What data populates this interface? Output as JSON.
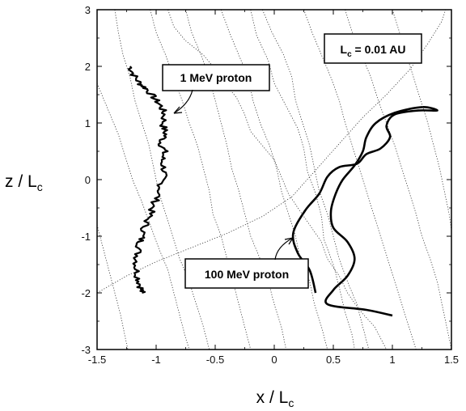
{
  "chart_data": {
    "type": "line",
    "title": "",
    "xlabel": "x / L",
    "xlabel_sub": "c",
    "ylabel": "z / L",
    "ylabel_sub": "c",
    "xlim": [
      -1.5,
      1.5
    ],
    "ylim": [
      -3,
      3
    ],
    "x_ticks": [
      -1.5,
      -1,
      -0.5,
      0,
      0.5,
      1,
      1.5
    ],
    "y_ticks": [
      -3,
      -2,
      -1,
      0,
      1,
      2,
      3
    ],
    "x_tick_labels": [
      "-1.5",
      "-1",
      "-0.5",
      "0",
      "0.5",
      "1",
      "1.5"
    ],
    "y_tick_labels": [
      "-3",
      "-2",
      "-1",
      "0",
      "1",
      "2",
      "3"
    ],
    "grid": false,
    "legend": "none",
    "annotations": {
      "lc_prefix": "L",
      "lc_sub": "c",
      "lc_suffix": " = 0.01 AU",
      "proton_1mev": "1 MeV proton",
      "proton_100mev": "100 MeV proton"
    },
    "series": [
      {
        "style": "thick-jagged",
        "points": [
          [
            -1.22,
            2.0
          ],
          [
            -1.19,
            1.85
          ],
          [
            -1.14,
            1.7
          ],
          [
            -1.08,
            1.6
          ],
          [
            -1.02,
            1.45
          ],
          [
            -0.96,
            1.3
          ],
          [
            -0.93,
            1.15
          ],
          [
            -0.94,
            0.95
          ],
          [
            -0.92,
            0.8
          ],
          [
            -0.96,
            0.65
          ],
          [
            -0.93,
            0.5
          ],
          [
            -0.95,
            0.35
          ],
          [
            -0.93,
            0.15
          ],
          [
            -0.95,
            0.0
          ],
          [
            -0.97,
            -0.2
          ],
          [
            -1.01,
            -0.4
          ],
          [
            -1.05,
            -0.6
          ],
          [
            -1.09,
            -0.8
          ],
          [
            -1.12,
            -1.0
          ],
          [
            -1.14,
            -1.15
          ],
          [
            -1.16,
            -1.35
          ],
          [
            -1.17,
            -1.55
          ],
          [
            -1.15,
            -1.75
          ],
          [
            -1.13,
            -1.9
          ],
          [
            -1.12,
            -2.0
          ]
        ]
      },
      {
        "style": "thick-smooth",
        "points": [
          [
            1.0,
            -2.4
          ],
          [
            0.78,
            -2.3
          ],
          [
            0.45,
            -2.2
          ],
          [
            0.5,
            -1.95
          ],
          [
            0.62,
            -1.7
          ],
          [
            0.68,
            -1.4
          ],
          [
            0.62,
            -1.1
          ],
          [
            0.5,
            -0.85
          ],
          [
            0.48,
            -0.55
          ],
          [
            0.52,
            -0.25
          ],
          [
            0.58,
            0.0
          ],
          [
            0.68,
            0.25
          ],
          [
            0.75,
            0.5
          ],
          [
            0.78,
            0.75
          ],
          [
            0.86,
            1.0
          ],
          [
            1.02,
            1.18
          ],
          [
            1.25,
            1.28
          ],
          [
            1.38,
            1.22
          ],
          [
            1.22,
            1.22
          ],
          [
            1.02,
            1.15
          ],
          [
            0.95,
            0.95
          ],
          [
            0.98,
            0.75
          ],
          [
            0.9,
            0.55
          ],
          [
            0.78,
            0.45
          ],
          [
            0.7,
            0.28
          ],
          [
            0.55,
            0.22
          ],
          [
            0.45,
            0.05
          ],
          [
            0.38,
            -0.25
          ],
          [
            0.26,
            -0.55
          ],
          [
            0.16,
            -0.95
          ],
          [
            0.2,
            -1.3
          ],
          [
            0.3,
            -1.6
          ],
          [
            0.35,
            -2.0
          ]
        ]
      },
      {
        "style": "dotted",
        "points": [
          [
            -0.1,
            3.0
          ],
          [
            -0.02,
            2.6
          ],
          [
            0.08,
            2.2
          ],
          [
            0.15,
            1.8
          ],
          [
            0.18,
            1.4
          ],
          [
            0.24,
            1.0
          ],
          [
            0.3,
            0.6
          ],
          [
            0.34,
            0.2
          ],
          [
            0.38,
            -0.2
          ],
          [
            0.45,
            -0.6
          ],
          [
            0.5,
            -1.0
          ],
          [
            0.55,
            -1.4
          ],
          [
            0.62,
            -1.8
          ],
          [
            0.7,
            -2.2
          ],
          [
            0.75,
            -2.6
          ],
          [
            0.8,
            -3.0
          ]
        ]
      },
      {
        "style": "dotted",
        "points": [
          [
            -0.45,
            3.0
          ],
          [
            -0.38,
            2.6
          ],
          [
            -0.3,
            2.2
          ],
          [
            -0.22,
            1.8
          ],
          [
            -0.18,
            1.4
          ],
          [
            -0.12,
            1.0
          ],
          [
            -0.04,
            0.6
          ],
          [
            0.02,
            0.2
          ],
          [
            0.06,
            -0.2
          ],
          [
            0.12,
            -0.6
          ],
          [
            0.18,
            -1.0
          ],
          [
            0.22,
            -1.4
          ],
          [
            0.3,
            -1.8
          ],
          [
            0.34,
            -2.2
          ],
          [
            0.4,
            -2.6
          ],
          [
            0.45,
            -3.0
          ]
        ]
      },
      {
        "style": "dotted",
        "points": [
          [
            -0.75,
            3.0
          ],
          [
            -0.7,
            2.6
          ],
          [
            -0.62,
            2.2
          ],
          [
            -0.55,
            1.8
          ],
          [
            -0.5,
            1.4
          ],
          [
            -0.45,
            1.0
          ],
          [
            -0.4,
            0.6
          ],
          [
            -0.36,
            0.2
          ],
          [
            -0.3,
            -0.2
          ],
          [
            -0.25,
            -0.6
          ],
          [
            -0.2,
            -1.0
          ],
          [
            -0.12,
            -1.4
          ],
          [
            -0.05,
            -1.8
          ],
          [
            0.0,
            -2.2
          ],
          [
            0.06,
            -2.6
          ],
          [
            0.1,
            -3.0
          ]
        ]
      },
      {
        "style": "dotted",
        "points": [
          [
            -1.05,
            3.0
          ],
          [
            -1.0,
            2.6
          ],
          [
            -0.92,
            2.2
          ],
          [
            -0.85,
            1.8
          ],
          [
            -0.78,
            1.4
          ],
          [
            -0.72,
            1.0
          ],
          [
            -0.65,
            0.6
          ],
          [
            -0.6,
            0.2
          ],
          [
            -0.55,
            -0.2
          ],
          [
            -0.52,
            -0.6
          ],
          [
            -0.45,
            -1.0
          ],
          [
            -0.4,
            -1.4
          ],
          [
            -0.35,
            -1.8
          ],
          [
            -0.3,
            -2.2
          ],
          [
            -0.25,
            -2.6
          ],
          [
            -0.2,
            -3.0
          ]
        ]
      },
      {
        "style": "dotted",
        "points": [
          [
            -1.35,
            3.0
          ],
          [
            -1.32,
            2.6
          ],
          [
            -1.28,
            2.2
          ],
          [
            -1.22,
            1.8
          ],
          [
            -1.18,
            1.4
          ],
          [
            -1.12,
            1.0
          ],
          [
            -1.06,
            0.6
          ],
          [
            -1.02,
            0.2
          ],
          [
            -0.98,
            -0.2
          ],
          [
            -0.92,
            -0.6
          ],
          [
            -0.86,
            -1.0
          ],
          [
            -0.8,
            -1.4
          ],
          [
            -0.72,
            -1.8
          ],
          [
            -0.66,
            -2.2
          ],
          [
            -0.6,
            -2.6
          ],
          [
            -0.55,
            -3.0
          ]
        ]
      },
      {
        "style": "dotted",
        "points": [
          [
            0.25,
            3.0
          ],
          [
            0.32,
            2.6
          ],
          [
            0.4,
            2.2
          ],
          [
            0.48,
            1.8
          ],
          [
            0.55,
            1.4
          ],
          [
            0.6,
            1.0
          ],
          [
            0.66,
            0.6
          ],
          [
            0.72,
            0.2
          ],
          [
            0.78,
            -0.2
          ],
          [
            0.84,
            -0.6
          ],
          [
            0.9,
            -1.0
          ],
          [
            0.96,
            -1.4
          ],
          [
            1.02,
            -1.8
          ],
          [
            1.08,
            -2.2
          ],
          [
            1.14,
            -2.6
          ],
          [
            1.2,
            -3.0
          ]
        ]
      },
      {
        "style": "dotted",
        "points": [
          [
            0.6,
            3.0
          ],
          [
            0.66,
            2.6
          ],
          [
            0.74,
            2.2
          ],
          [
            0.82,
            1.8
          ],
          [
            0.88,
            1.4
          ],
          [
            0.95,
            1.0
          ],
          [
            1.02,
            0.6
          ],
          [
            1.08,
            0.2
          ],
          [
            1.14,
            -0.2
          ],
          [
            1.2,
            -0.6
          ],
          [
            1.25,
            -1.0
          ],
          [
            1.32,
            -1.4
          ],
          [
            1.38,
            -1.8
          ],
          [
            1.42,
            -2.2
          ],
          [
            1.46,
            -2.6
          ],
          [
            1.5,
            -3.0
          ]
        ]
      },
      {
        "style": "dotted",
        "points": [
          [
            1.0,
            3.0
          ],
          [
            1.06,
            2.6
          ],
          [
            1.12,
            2.2
          ],
          [
            1.18,
            1.8
          ],
          [
            1.24,
            1.4
          ],
          [
            1.3,
            1.0
          ],
          [
            1.35,
            0.6
          ],
          [
            1.4,
            0.2
          ],
          [
            1.44,
            -0.2
          ],
          [
            1.48,
            -0.6
          ],
          [
            1.5,
            -0.9
          ]
        ]
      },
      {
        "style": "dotted",
        "points": [
          [
            -1.5,
            1.7
          ],
          [
            -1.4,
            1.2
          ],
          [
            -1.32,
            0.8
          ],
          [
            -1.26,
            0.4
          ],
          [
            -1.2,
            0.0
          ],
          [
            -1.12,
            -0.4
          ],
          [
            -1.05,
            -0.8
          ],
          [
            -0.98,
            -1.2
          ],
          [
            -0.9,
            -1.6
          ],
          [
            -0.85,
            -2.0
          ],
          [
            -0.8,
            -2.4
          ],
          [
            -0.75,
            -2.8
          ],
          [
            -0.72,
            -3.0
          ]
        ]
      },
      {
        "style": "dotted",
        "points": [
          [
            -1.5,
            -0.8
          ],
          [
            -1.45,
            -1.2
          ],
          [
            -1.4,
            -1.6
          ],
          [
            -1.35,
            -2.0
          ],
          [
            -1.3,
            -2.4
          ],
          [
            -1.26,
            -2.8
          ],
          [
            -1.24,
            -3.0
          ]
        ]
      },
      {
        "style": "dotted",
        "points": [
          [
            -1.5,
            -2.0
          ],
          [
            -1.25,
            -1.7
          ],
          [
            -1.0,
            -1.45
          ],
          [
            -0.7,
            -1.2
          ],
          [
            -0.4,
            -0.95
          ],
          [
            -0.1,
            -0.65
          ],
          [
            0.15,
            -0.3
          ],
          [
            0.3,
            0.05
          ],
          [
            0.45,
            0.4
          ],
          [
            0.6,
            0.75
          ],
          [
            0.75,
            1.1
          ],
          [
            0.95,
            1.5
          ],
          [
            1.15,
            1.95
          ],
          [
            1.3,
            2.4
          ],
          [
            1.42,
            2.8
          ],
          [
            1.45,
            3.0
          ]
        ]
      },
      {
        "style": "dotted",
        "points": [
          [
            -0.9,
            3.0
          ],
          [
            -0.85,
            2.7
          ],
          [
            -0.75,
            2.45
          ],
          [
            -0.6,
            2.2
          ],
          [
            -0.5,
            1.95
          ],
          [
            -0.42,
            1.7
          ],
          [
            -0.32,
            1.45
          ],
          [
            -0.25,
            1.15
          ],
          [
            -0.2,
            0.85
          ],
          [
            -0.1,
            0.6
          ],
          [
            0.0,
            0.35
          ],
          [
            0.06,
            0.05
          ],
          [
            0.12,
            -0.25
          ],
          [
            0.2,
            -0.5
          ],
          [
            0.3,
            -0.8
          ],
          [
            0.4,
            -1.1
          ],
          [
            0.45,
            -1.4
          ],
          [
            0.55,
            -1.7
          ],
          [
            0.62,
            -2.0
          ],
          [
            0.72,
            -2.3
          ],
          [
            0.85,
            -2.6
          ],
          [
            0.95,
            -3.0
          ]
        ]
      },
      {
        "style": "dotted",
        "points": [
          [
            -0.2,
            3.0
          ],
          [
            -0.15,
            2.55
          ],
          [
            -0.05,
            2.1
          ],
          [
            0.0,
            1.7
          ],
          [
            0.1,
            1.3
          ],
          [
            0.2,
            0.9
          ],
          [
            0.25,
            0.55
          ],
          [
            0.28,
            0.15
          ],
          [
            0.35,
            -0.25
          ],
          [
            0.4,
            -0.65
          ],
          [
            0.42,
            -1.05
          ],
          [
            0.5,
            -1.5
          ],
          [
            0.55,
            -1.9
          ],
          [
            0.6,
            -2.35
          ],
          [
            0.66,
            -2.75
          ],
          [
            0.68,
            -3.0
          ]
        ]
      }
    ]
  }
}
